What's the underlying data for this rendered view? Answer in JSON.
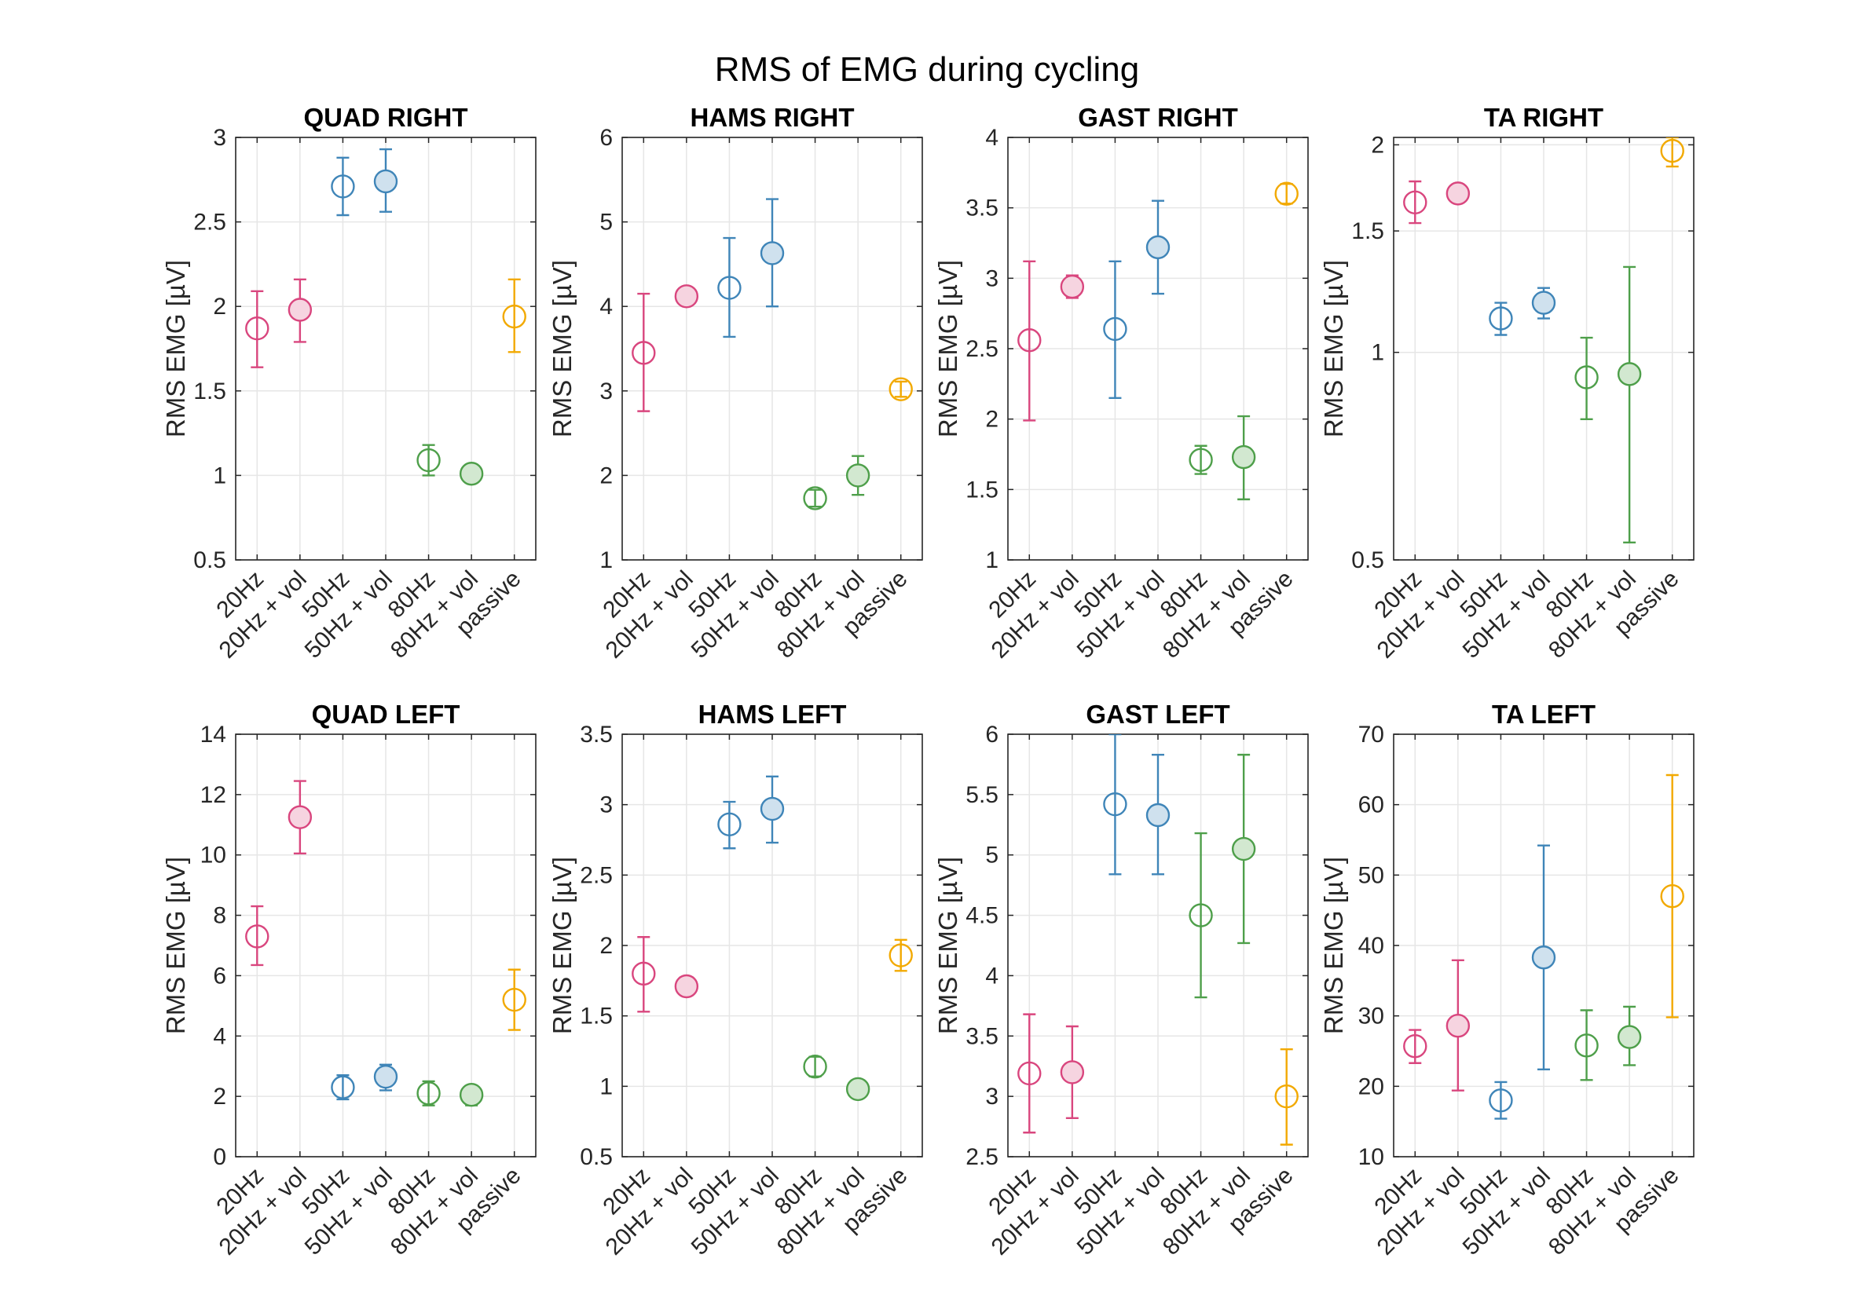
{
  "figure": {
    "title": "RMS of EMG during cycling",
    "categories": [
      "20Hz",
      "20Hz + vol",
      "50Hz",
      "50Hz + vol",
      "80Hz",
      "80Hz + vol",
      "passive"
    ],
    "filled": [
      false,
      true,
      false,
      true,
      false,
      true,
      false
    ],
    "colors": [
      "#d9467e",
      "#d9467e",
      "#3f85b8",
      "#3f85b8",
      "#4e9f4a",
      "#4e9f4a",
      "#f2a900"
    ],
    "fill_colors": [
      "#f6d4e0",
      "#f6d4e0",
      "#cfe1ee",
      "#cfe1ee",
      "#d2e8d0",
      "#d2e8d0",
      "#fdeec2"
    ]
  },
  "chart_data": [
    {
      "type": "scatter",
      "title": "QUAD RIGHT",
      "ylabel": "RMS EMG [µV]",
      "ylim": [
        0.5,
        3
      ],
      "yticks": [
        "0.5",
        "1",
        "1.5",
        "2",
        "2.5",
        "3"
      ],
      "grid": true,
      "values": [
        1.87,
        1.98,
        2.71,
        2.74,
        1.09,
        1.01,
        1.94
      ],
      "lower": [
        1.64,
        1.79,
        2.54,
        2.56,
        1.0,
        0.98,
        1.73
      ],
      "upper": [
        2.09,
        2.16,
        2.88,
        2.93,
        1.18,
        1.04,
        2.16
      ]
    },
    {
      "type": "scatter",
      "title": "HAMS RIGHT",
      "ylabel": "RMS EMG [µV]",
      "ylim": [
        1,
        6
      ],
      "yticks": [
        "1",
        "2",
        "3",
        "4",
        "5",
        "6"
      ],
      "grid": true,
      "values": [
        3.45,
        4.12,
        4.22,
        4.63,
        1.73,
        2.0,
        3.02
      ],
      "lower": [
        2.76,
        4.02,
        3.64,
        4.0,
        1.63,
        1.77,
        2.93
      ],
      "upper": [
        4.15,
        4.22,
        4.81,
        5.27,
        1.83,
        2.23,
        3.11
      ]
    },
    {
      "type": "scatter",
      "title": "GAST RIGHT",
      "ylabel": "RMS EMG [µV]",
      "ylim": [
        1,
        4
      ],
      "yticks": [
        "1",
        "1.5",
        "2",
        "2.5",
        "3",
        "3.5",
        "4"
      ],
      "grid": true,
      "values": [
        2.56,
        2.94,
        2.64,
        3.22,
        1.71,
        1.73,
        3.6
      ],
      "lower": [
        1.99,
        2.86,
        2.15,
        2.89,
        1.61,
        1.43,
        3.53
      ],
      "upper": [
        3.12,
        3.02,
        3.12,
        3.55,
        1.81,
        2.02,
        3.67
      ]
    },
    {
      "type": "scatter",
      "title": "TA RIGHT",
      "ylabel": "RMS EMG [µV]",
      "ylim": [
        0.5,
        2.05
      ],
      "yscale": "log",
      "yticks": [
        "0.5",
        "1",
        "1.5",
        "2"
      ],
      "grid": true,
      "values": [
        1.65,
        1.7,
        1.12,
        1.18,
        0.92,
        0.93,
        1.96
      ],
      "lower": [
        1.54,
        1.65,
        1.06,
        1.12,
        0.8,
        0.53,
        1.86
      ],
      "upper": [
        1.77,
        1.75,
        1.18,
        1.24,
        1.05,
        1.33,
        2.05
      ]
    },
    {
      "type": "scatter",
      "title": "QUAD LEFT",
      "ylabel": "RMS EMG [µV]",
      "ylim": [
        0,
        14
      ],
      "yticks": [
        "0",
        "2",
        "4",
        "6",
        "8",
        "10",
        "12",
        "14"
      ],
      "grid": true,
      "values": [
        7.3,
        11.25,
        2.3,
        2.65,
        2.1,
        2.05,
        5.2
      ],
      "lower": [
        6.35,
        10.05,
        1.9,
        2.2,
        1.7,
        1.7,
        4.2
      ],
      "upper": [
        8.3,
        12.45,
        2.7,
        3.05,
        2.5,
        2.35,
        6.2
      ]
    },
    {
      "type": "scatter",
      "title": "HAMS LEFT",
      "ylabel": "RMS EMG [µV]",
      "ylim": [
        0.5,
        3.5
      ],
      "yticks": [
        "0.5",
        "1",
        "1.5",
        "2",
        "2.5",
        "3",
        "3.5"
      ],
      "grid": true,
      "values": [
        1.8,
        1.71,
        2.86,
        2.97,
        1.14,
        0.98,
        1.93
      ],
      "lower": [
        1.53,
        1.65,
        2.69,
        2.73,
        1.07,
        0.94,
        1.82
      ],
      "upper": [
        2.06,
        1.77,
        3.02,
        3.2,
        1.21,
        1.02,
        2.04
      ]
    },
    {
      "type": "scatter",
      "title": "GAST LEFT",
      "ylabel": "RMS EMG [µV]",
      "ylim": [
        2.5,
        6
      ],
      "yticks": [
        "2.5",
        "3",
        "3.5",
        "4",
        "4.5",
        "5",
        "5.5",
        "6"
      ],
      "grid": true,
      "values": [
        3.19,
        3.2,
        5.42,
        5.33,
        4.5,
        5.05,
        3.0
      ],
      "lower": [
        2.7,
        2.82,
        4.84,
        4.84,
        3.82,
        4.27,
        2.6
      ],
      "upper": [
        3.68,
        3.58,
        6.0,
        5.83,
        5.18,
        5.83,
        3.39
      ]
    },
    {
      "type": "scatter",
      "title": "TA LEFT",
      "ylabel": "RMS EMG [µV]",
      "ylim": [
        10,
        70
      ],
      "yticks": [
        "10",
        "20",
        "30",
        "40",
        "50",
        "60",
        "70"
      ],
      "grid": true,
      "values": [
        25.7,
        28.6,
        18.0,
        38.3,
        25.8,
        27.0,
        47.0
      ],
      "lower": [
        23.3,
        19.4,
        15.4,
        22.4,
        20.9,
        23.0,
        29.8
      ],
      "upper": [
        28.0,
        37.9,
        20.6,
        54.2,
        30.8,
        31.3,
        64.2
      ]
    }
  ]
}
